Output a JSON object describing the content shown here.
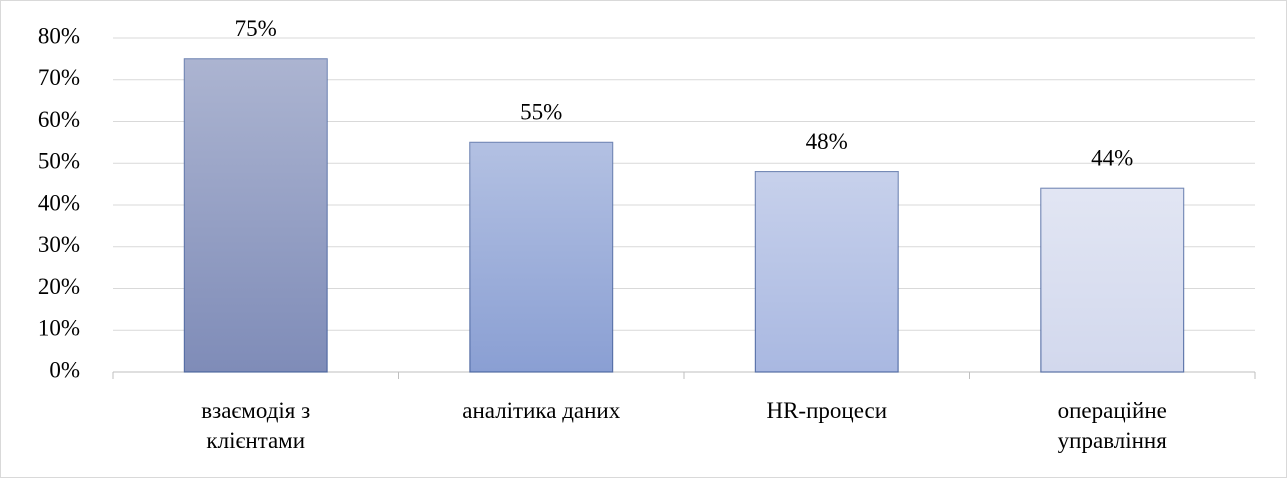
{
  "chart_data": {
    "type": "bar",
    "categories": [
      "взаємодія з клієнтами",
      "аналітика даних",
      "HR-процеси",
      "операційне управління"
    ],
    "values": [
      75,
      55,
      48,
      44
    ],
    "value_labels": [
      "75%",
      "55%",
      "48%",
      "44%"
    ],
    "colors": [
      "#7f8cb8",
      "#8a9fd3",
      "#a9b8e1",
      "#d2d8ed"
    ],
    "ylim": [
      0,
      80
    ],
    "yticks": [
      {
        "value": 0,
        "label": "0%"
      },
      {
        "value": 10,
        "label": "10%"
      },
      {
        "value": 20,
        "label": "20%"
      },
      {
        "value": 30,
        "label": "30%"
      },
      {
        "value": 40,
        "label": "40%"
      },
      {
        "value": 50,
        "label": "50%"
      },
      {
        "value": 60,
        "label": "60%"
      },
      {
        "value": 70,
        "label": "70%"
      },
      {
        "value": 80,
        "label": "80%"
      }
    ],
    "grid": true
  }
}
